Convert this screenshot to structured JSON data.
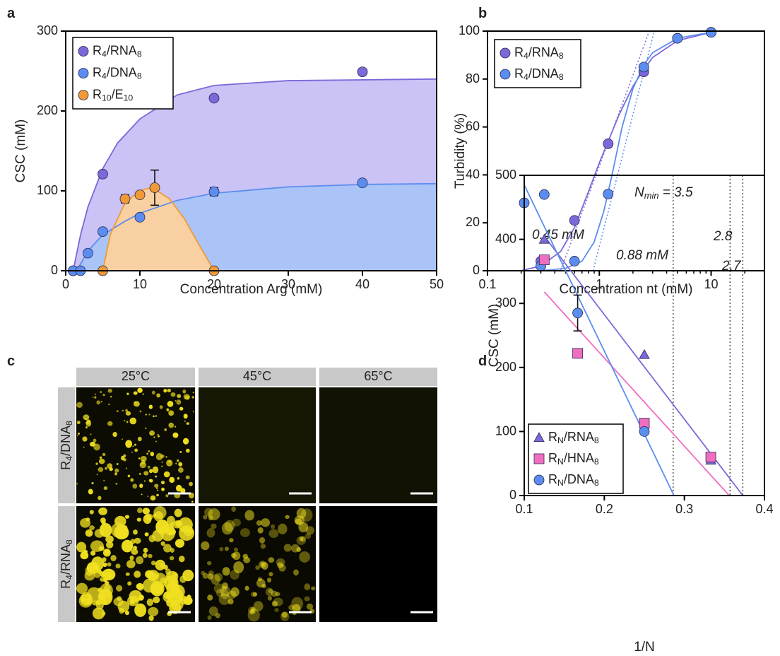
{
  "panel_labels": [
    "a",
    "b",
    "c",
    "d"
  ],
  "chart_data": [
    {
      "type": "scatter",
      "xlabel": "Concentration Arg (mM)",
      "ylabel": "CSC (mM)",
      "xlim": [
        0,
        50
      ],
      "ylim": [
        0,
        300
      ],
      "xticks": [
        0,
        10,
        20,
        30,
        40,
        50
      ],
      "yticks": [
        0,
        100,
        200,
        300
      ],
      "legend": "upper left",
      "series": [
        {
          "name": "R4/RNA8",
          "color": "#7b68d9",
          "fill": "#cbc2f5",
          "marker": "circle",
          "x": [
            1,
            5,
            20,
            40
          ],
          "values": [
            0,
            121,
            216,
            249
          ],
          "fit": {
            "x": [
              1,
              2,
              3,
              5,
              7,
              10,
              15,
              20,
              30,
              40,
              50
            ],
            "values": [
              0,
              45,
              80,
              128,
              160,
              190,
              220,
              232,
              238,
              239,
              240
            ]
          }
        },
        {
          "name": "R4/DNA8",
          "color": "#5b8def",
          "fill": "#aac4f8",
          "marker": "circle",
          "x": [
            1,
            2,
            3,
            5,
            10,
            20,
            40
          ],
          "values": [
            0,
            0,
            22,
            49,
            67,
            99,
            110
          ],
          "errors": [
            null,
            null,
            null,
            null,
            null,
            5,
            null
          ],
          "fit": {
            "x": [
              1.5,
              3,
              5,
              8,
              10,
              15,
              20,
              30,
              40,
              50
            ],
            "values": [
              0,
              25,
              45,
              62,
              72,
              88,
              97,
              105,
              108,
              109
            ]
          }
        },
        {
          "name": "R10/E10",
          "color": "#f09a35",
          "fill": "#f9d0a2",
          "marker": "circle",
          "x": [
            5,
            8,
            10,
            12,
            20
          ],
          "values": [
            0,
            90,
            95,
            104,
            0
          ],
          "errors": [
            null,
            5,
            null,
            22,
            null
          ],
          "fit": {
            "x": [
              5,
              6,
              8,
              10,
              11,
              12,
              14,
              16,
              18,
              20
            ],
            "values": [
              0,
              45,
              85,
              100,
              103,
              102,
              90,
              65,
              32,
              0
            ]
          }
        }
      ]
    },
    {
      "type": "scatter",
      "xscale": "log",
      "xlabel": "Concentration nt (mM)",
      "ylabel": "Turbidity (%)",
      "xlim": [
        0.1,
        30
      ],
      "ylim": [
        0,
        100
      ],
      "xticks": [
        0.1,
        1,
        10
      ],
      "xminor": [
        0.2,
        0.3,
        0.4,
        0.5,
        0.6,
        0.7,
        0.8,
        0.9,
        2,
        3,
        4,
        5,
        6,
        7,
        8,
        9,
        20,
        30
      ],
      "yticks": [
        0,
        20,
        40,
        60,
        80,
        100
      ],
      "legend": "upper left",
      "series": [
        {
          "name": "R4/RNA8",
          "color": "#7b68d9",
          "marker": "circle",
          "x": [
            0.3,
            0.6,
            1.2,
            2.5,
            5,
            10
          ],
          "values": [
            4,
            21,
            53,
            83,
            97,
            99.5
          ],
          "fit": {
            "x": [
              0.2,
              0.3,
              0.45,
              0.6,
              0.8,
              1,
              1.2,
              1.5,
              2,
              2.5,
              3,
              5,
              10
            ],
            "values": [
              0,
              2,
              8,
              18,
              33,
              45,
              54,
              65,
              77,
              84,
              89,
              96,
              99.5
            ]
          }
        },
        {
          "name": "R4/DNA8",
          "color": "#5b8def",
          "marker": "circle",
          "x": [
            0.3,
            0.6,
            1.2,
            2.5,
            5,
            10
          ],
          "values": [
            2,
            4,
            32,
            85,
            97,
            99.5
          ],
          "fit": {
            "x": [
              0.3,
              0.5,
              0.7,
              0.9,
              1.1,
              1.3,
              1.6,
              2,
              2.5,
              3,
              5,
              10
            ],
            "values": [
              0,
              1,
              4,
              12,
              25,
              40,
              60,
              76,
              86,
              91,
              97,
              99.5
            ]
          }
        }
      ],
      "guides": [
        {
          "x": [
            0.45,
            2.8
          ],
          "values": [
            0,
            100
          ]
        },
        {
          "x": [
            0.88,
            3.1
          ],
          "values": [
            0,
            100
          ]
        }
      ],
      "annotations": [
        "0.45 mM",
        "0.88 mM"
      ]
    },
    {
      "type": "scatter",
      "xlabel": "1/N",
      "ylabel": "CSC (mM)",
      "xlim": [
        0.1,
        0.4
      ],
      "ylim": [
        0,
        500
      ],
      "xticks": [
        0.1,
        0.2,
        0.3,
        0.4
      ],
      "yticks": [
        0,
        100,
        200,
        300,
        400,
        500
      ],
      "legend": "lower left",
      "series": [
        {
          "name": "RN/RNA8",
          "color": "#7b68d9",
          "marker": "triangle",
          "x": [
            0.125,
            0.25,
            0.333
          ],
          "values": [
            400,
            220,
            55
          ],
          "fit": {
            "x": [
              0.125,
              0.373
            ],
            "values": [
              405,
              0
            ]
          }
        },
        {
          "name": "RN/HNA8",
          "color": "#f06ec0",
          "marker": "square",
          "x": [
            0.125,
            0.1667,
            0.25,
            0.333
          ],
          "values": [
            368,
            222,
            113,
            60
          ],
          "fit": {
            "x": [
              0.125,
              0.356
            ],
            "values": [
              318,
              0
            ]
          }
        },
        {
          "name": "RN/DNA8",
          "color": "#5b8def",
          "marker": "circle",
          "x": [
            0.1,
            0.125,
            0.1667,
            0.25
          ],
          "values": [
            457,
            470,
            285,
            100
          ],
          "errors": [
            null,
            null,
            28,
            null
          ],
          "fit": {
            "x": [
              0.1,
              0.287
            ],
            "values": [
              485,
              0
            ]
          }
        }
      ],
      "vlines": [
        0.286,
        0.357,
        0.373
      ],
      "annotations": [
        "Nmin = 3.5",
        "2.8",
        "2.7"
      ]
    }
  ],
  "micrographs": {
    "columns": [
      "25°C",
      "45°C",
      "65°C"
    ],
    "rows": [
      "R4/DNA8",
      "R4/RNA8"
    ]
  }
}
